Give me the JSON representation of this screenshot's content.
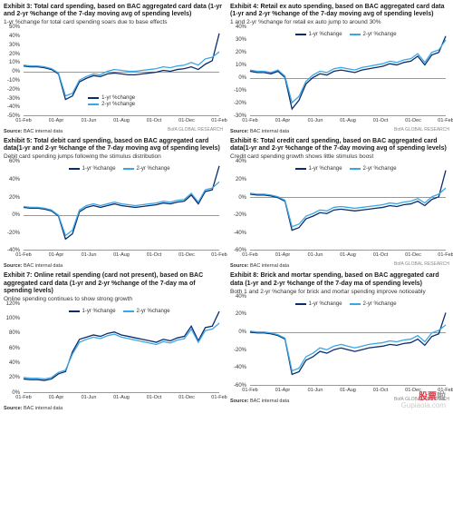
{
  "colors": {
    "series1": "#0a2d6b",
    "series2": "#3aa6e6",
    "axis": "#999999",
    "text": "#333333",
    "bg": "#ffffff"
  },
  "typography": {
    "title_fontsize": 7,
    "subtitle_fontsize": 6.5,
    "axis_fontsize": 6,
    "source_fontsize": 5.5,
    "font_family": "Arial, sans-serif"
  },
  "xticks": [
    "01-Feb",
    "01-Apr",
    "01-Jun",
    "01-Aug",
    "01-Oct",
    "01-Dec",
    "01-Feb"
  ],
  "legend_labels": {
    "s1": "1-yr %change",
    "s2": "2-yr %change"
  },
  "source_label": "Source:",
  "source_text": "BAC internal data",
  "research_label": "BofA GLOBAL RESEARCH",
  "watermark": {
    "top1": "股票",
    "top2": "啦",
    "bottom": "Gupiaola.com"
  },
  "charts": [
    {
      "title": "Exhibit 3: Total card spending, based on BAC aggregated card data (1-yr and 2-yr %change of the 7-day moving avg of spending levels)",
      "subtitle": "1-yr %change for total card spending soars due to base effects",
      "ylim": [
        -50,
        50
      ],
      "ytick_step": 10,
      "legend_pos": "bottom",
      "s1": [
        6,
        5,
        5,
        4,
        2,
        -3,
        -32,
        -28,
        -12,
        -8,
        -5,
        -6,
        -3,
        -2,
        -3,
        -4,
        -4,
        -3,
        -2,
        -1,
        1,
        0,
        2,
        3,
        5,
        2,
        8,
        12,
        43
      ],
      "s2": [
        7,
        6,
        6,
        5,
        3,
        -2,
        -28,
        -25,
        -10,
        -6,
        -3,
        -4,
        0,
        2,
        1,
        0,
        0,
        1,
        2,
        3,
        5,
        4,
        6,
        7,
        10,
        7,
        14,
        16,
        22
      ]
    },
    {
      "title": "Exhibit 4: Retail ex auto spending, based on BAC aggregated card data (1-yr and 2-yr %change of the 7-day moving avg of spending levels)",
      "subtitle": "1 and 2-yr %change for retail ex auto jump to around 30%",
      "ylim": [
        -30,
        40
      ],
      "ytick_step": 10,
      "legend_pos": "top",
      "s1": [
        5,
        4,
        4,
        3,
        5,
        0,
        -25,
        -18,
        -5,
        0,
        3,
        2,
        5,
        6,
        5,
        4,
        6,
        7,
        8,
        9,
        11,
        10,
        12,
        13,
        17,
        10,
        18,
        20,
        33
      ],
      "s2": [
        6,
        5,
        5,
        4,
        6,
        1,
        -20,
        -15,
        -3,
        2,
        5,
        4,
        7,
        8,
        7,
        6,
        8,
        9,
        10,
        11,
        13,
        12,
        14,
        15,
        19,
        12,
        20,
        22,
        30
      ]
    },
    {
      "title": "Exhibit 5: Total debit card spending, based on BAC aggregated card data(1-yr and 2-yr %change of the 7-day moving avg of spending levels)",
      "subtitle": "Debit card spending jumps following the stimulus distribution",
      "ylim": [
        -40,
        60
      ],
      "ytick_step": 20,
      "legend_pos": "top",
      "s1": [
        8,
        7,
        7,
        6,
        4,
        -2,
        -28,
        -22,
        3,
        8,
        10,
        8,
        10,
        12,
        10,
        9,
        8,
        9,
        10,
        11,
        13,
        12,
        14,
        15,
        22,
        12,
        26,
        28,
        55
      ],
      "s2": [
        9,
        8,
        8,
        7,
        5,
        -1,
        -24,
        -18,
        5,
        10,
        12,
        10,
        12,
        14,
        12,
        11,
        10,
        11,
        12,
        13,
        15,
        14,
        16,
        17,
        24,
        14,
        28,
        30,
        37
      ]
    },
    {
      "title": "Exhibit 6: Total credit card spending, based on BAC aggregated card data(1-yr and 2-yr %change of the 7-day moving avg of spending levels)",
      "subtitle": "Credit card spending growth shows little stimulus boost",
      "ylim": [
        -60,
        40
      ],
      "ytick_step": 20,
      "legend_pos": "top",
      "s1": [
        3,
        2,
        2,
        1,
        -1,
        -5,
        -38,
        -35,
        -25,
        -22,
        -18,
        -19,
        -15,
        -14,
        -15,
        -16,
        -15,
        -14,
        -13,
        -12,
        -10,
        -11,
        -9,
        -8,
        -5,
        -10,
        -3,
        0,
        30
      ],
      "s2": [
        4,
        3,
        3,
        2,
        0,
        -4,
        -34,
        -31,
        -22,
        -19,
        -15,
        -16,
        -12,
        -11,
        -12,
        -13,
        -12,
        -11,
        -10,
        -9,
        -7,
        -8,
        -6,
        -5,
        -2,
        -7,
        0,
        3,
        10
      ]
    },
    {
      "title": "Exhibit 7: Online retail spending (card not present), based on BAC aggregated card data (1-yr and 2-yr %change of the 7-day ma of spending levels)",
      "subtitle": "Online spending continues to show strong growth",
      "ylim": [
        0,
        120
      ],
      "ytick_step": 20,
      "legend_pos": "top",
      "s1": [
        18,
        17,
        17,
        16,
        18,
        25,
        28,
        55,
        72,
        75,
        78,
        76,
        80,
        82,
        78,
        76,
        74,
        72,
        70,
        68,
        72,
        70,
        74,
        76,
        90,
        70,
        88,
        90,
        110
      ],
      "s2": [
        20,
        19,
        19,
        18,
        20,
        27,
        30,
        52,
        68,
        72,
        75,
        73,
        77,
        79,
        75,
        73,
        71,
        69,
        67,
        65,
        69,
        67,
        71,
        73,
        86,
        68,
        84,
        86,
        94
      ]
    },
    {
      "title": "Exhibit 8: Brick and mortar spending, based on BAC aggregated card data (1-yr and 2-yr %change of the 7-day ma of spending levels)",
      "subtitle": "Both 1 and 2-yr %change for brick and mortar spending improve noticeably",
      "ylim": [
        -60,
        40
      ],
      "ytick_step": 20,
      "legend_pos": "top",
      "s1": [
        0,
        -1,
        -1,
        -2,
        -4,
        -8,
        -48,
        -45,
        -32,
        -28,
        -22,
        -24,
        -20,
        -18,
        -20,
        -22,
        -20,
        -18,
        -17,
        -16,
        -14,
        -15,
        -13,
        -12,
        -8,
        -15,
        -5,
        -2,
        22
      ],
      "s2": [
        1,
        0,
        0,
        -1,
        -3,
        -7,
        -44,
        -41,
        -28,
        -24,
        -18,
        -20,
        -16,
        -14,
        -16,
        -18,
        -16,
        -14,
        -13,
        -12,
        -10,
        -11,
        -9,
        -8,
        -4,
        -11,
        -1,
        2,
        8
      ]
    }
  ]
}
